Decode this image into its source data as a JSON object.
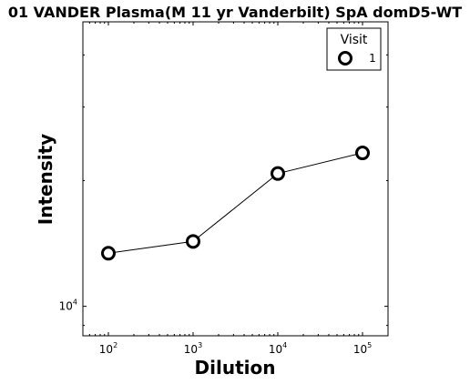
{
  "chart_data": {
    "type": "line",
    "title": "01 VANDER Plasma(M 11 yr Vanderbilt) SpA domD5-WT",
    "xlabel": "Dilution",
    "ylabel": "Intensity",
    "x_scale": "log",
    "y_scale": "log",
    "xlim": [
      50,
      200000
    ],
    "ylim": [
      8500,
      48000
    ],
    "x_ticks": [
      100,
      1000,
      10000,
      100000
    ],
    "x_tick_labels": [
      {
        "base": "10",
        "exp": "2"
      },
      {
        "base": "10",
        "exp": "3"
      },
      {
        "base": "10",
        "exp": "4"
      },
      {
        "base": "10",
        "exp": "5"
      }
    ],
    "y_ticks": [
      10000
    ],
    "y_tick_labels": [
      {
        "base": "10",
        "exp": "4"
      }
    ],
    "grid": false,
    "legend": {
      "title": "Visit",
      "position": "top-right"
    },
    "series": [
      {
        "name": "1",
        "color": "#000000",
        "marker": "open-circle",
        "x": [
          100,
          1000,
          10000,
          100000
        ],
        "y": [
          13400,
          14300,
          20800,
          23300
        ]
      }
    ]
  }
}
